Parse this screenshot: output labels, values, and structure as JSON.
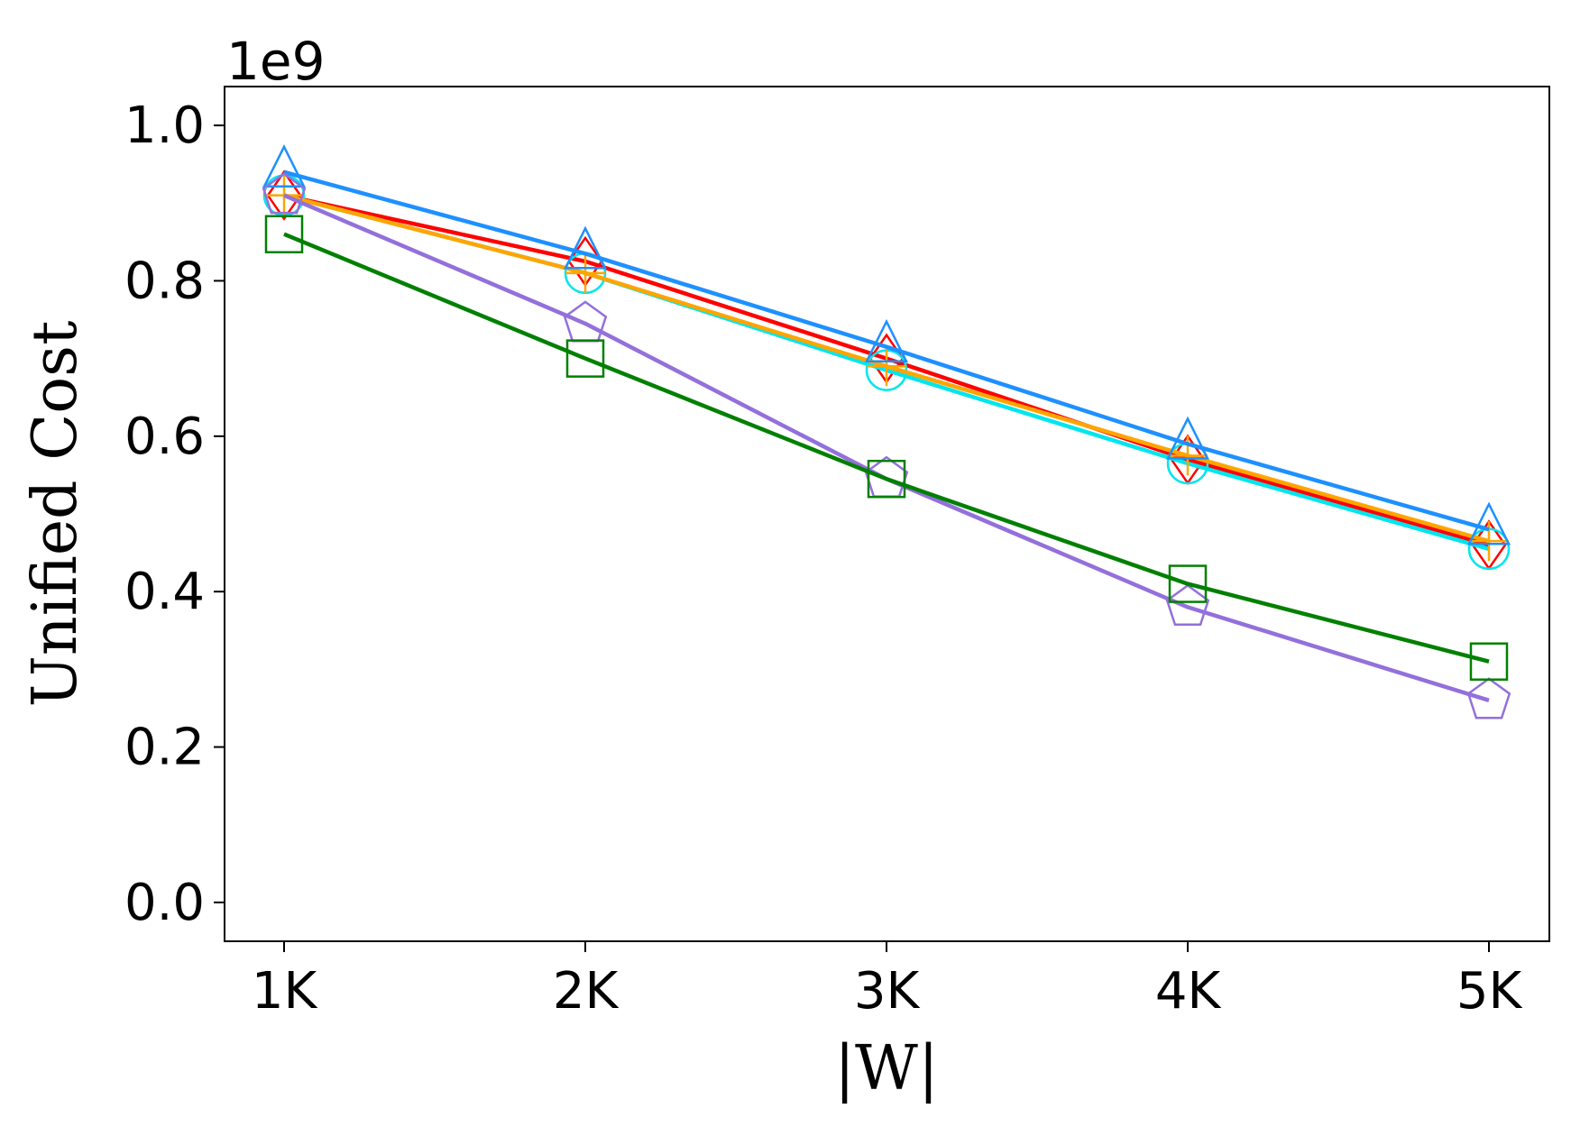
{
  "chart_data": {
    "type": "line",
    "title": "",
    "xlabel": "|W|",
    "ylabel": "Unified Cost",
    "y_multiplier_label": "1e9",
    "categories": [
      "1K",
      "2K",
      "3K",
      "4K",
      "5K"
    ],
    "y_ticks": [
      "0.0",
      "0.2",
      "0.4",
      "0.6",
      "0.8",
      "1.0"
    ],
    "ylim": [
      -0.05,
      1.05
    ],
    "grid": false,
    "legend": "none",
    "series": [
      {
        "color": "#ff0000",
        "marker": "diamond",
        "values": [
          0.91,
          0.825,
          0.7,
          0.57,
          0.46
        ]
      },
      {
        "color": "#00e5ee",
        "marker": "circle",
        "values": [
          0.91,
          0.81,
          0.685,
          0.565,
          0.455
        ]
      },
      {
        "color": "#ffa500",
        "marker": "plus",
        "values": [
          0.91,
          0.81,
          0.69,
          0.575,
          0.465
        ]
      },
      {
        "color": "#1e90ff",
        "marker": "triangle",
        "values": [
          0.94,
          0.835,
          0.715,
          0.59,
          0.48
        ]
      },
      {
        "color": "#9370db",
        "marker": "pentagon",
        "values": [
          0.91,
          0.745,
          0.545,
          0.38,
          0.26
        ]
      },
      {
        "color": "#008000",
        "marker": "square",
        "values": [
          0.86,
          0.7,
          0.545,
          0.41,
          0.31
        ]
      }
    ]
  }
}
